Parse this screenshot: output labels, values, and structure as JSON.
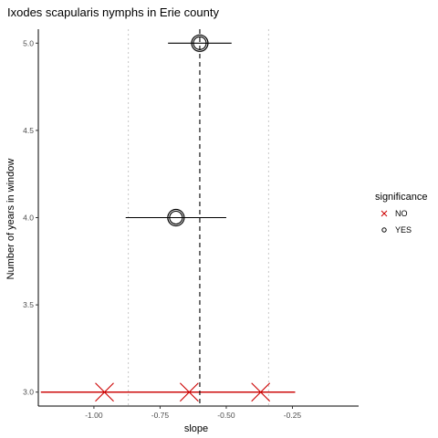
{
  "chart_data": {
    "type": "scatter",
    "title": "Ixodes scapularis nymphs in Erie county",
    "xlabel": "slope",
    "ylabel": "Number of years in window",
    "xlim": [
      -1.21,
      0.0
    ],
    "ylim": [
      2.92,
      5.08
    ],
    "x_ticks": [
      -1.0,
      -0.75,
      -0.5,
      -0.25
    ],
    "x_tick_labels": [
      "-1.00",
      "-0.75",
      "-0.50",
      "-0.25"
    ],
    "y_ticks": [
      3.0,
      3.5,
      4.0,
      4.5,
      5.0
    ],
    "y_tick_labels": [
      "3.0",
      "3.5",
      "4.0",
      "4.5",
      "5.0"
    ],
    "reference_lines": {
      "dashed_vertical": -0.6,
      "dotted_vertical": [
        -0.87,
        -0.34
      ]
    },
    "legend": {
      "title": "significance",
      "position": "right",
      "entries": [
        {
          "label": "NO",
          "marker": "x",
          "color": "#cc0000"
        },
        {
          "label": "YES",
          "marker": "circle",
          "color": "#000000"
        }
      ]
    },
    "points": [
      {
        "y": 5.0,
        "x": -0.6,
        "xmin": -0.72,
        "xmax": -0.48,
        "significance": "YES"
      },
      {
        "y": 4.0,
        "x": -0.69,
        "xmin": -0.88,
        "xmax": -0.5,
        "significance": "YES"
      },
      {
        "y": 3.0,
        "x": -0.96,
        "xmin": -1.2,
        "xmax": -0.24,
        "significance": "NO"
      },
      {
        "y": 3.0,
        "x": -0.64,
        "xmin": -1.2,
        "xmax": -0.24,
        "significance": "NO"
      },
      {
        "y": 3.0,
        "x": -0.37,
        "xmin": -1.2,
        "xmax": -0.24,
        "significance": "NO"
      }
    ],
    "grid": false
  }
}
